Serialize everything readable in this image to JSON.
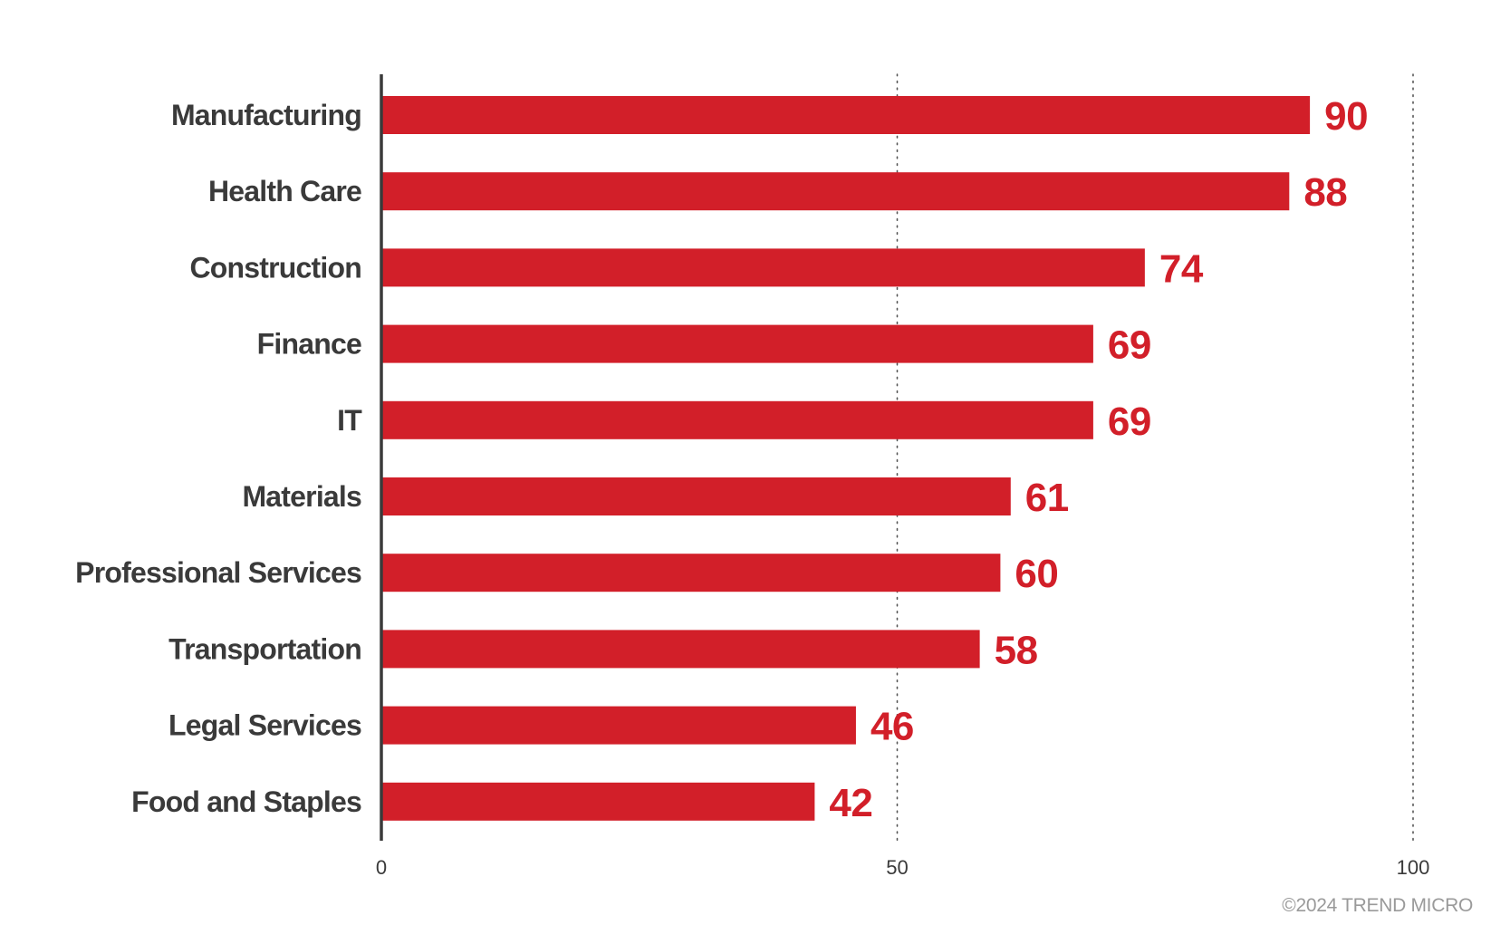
{
  "chart_data": {
    "type": "bar",
    "orientation": "horizontal",
    "categories": [
      "Manufacturing",
      "Health Care",
      "Construction",
      "Finance",
      "IT",
      "Materials",
      "Professional Services",
      "Transportation",
      "Legal Services",
      "Food and Staples"
    ],
    "values": [
      90,
      88,
      74,
      69,
      69,
      61,
      60,
      58,
      46,
      42
    ],
    "data_labels": [
      "90",
      "88",
      "74",
      "69",
      "69",
      "61",
      "60",
      "58",
      "46",
      "42"
    ],
    "xlim": [
      0,
      100
    ],
    "x_ticks": [
      0,
      50,
      100
    ],
    "x_tick_labels": [
      "0",
      "50",
      "100"
    ],
    "gridlines": "dotted vertical at 50 and 100",
    "legend": "none",
    "bar_color": "#d21f29",
    "label_color": "#d21f29"
  },
  "footer": {
    "copyright": "©2024 TREND MICRO"
  }
}
